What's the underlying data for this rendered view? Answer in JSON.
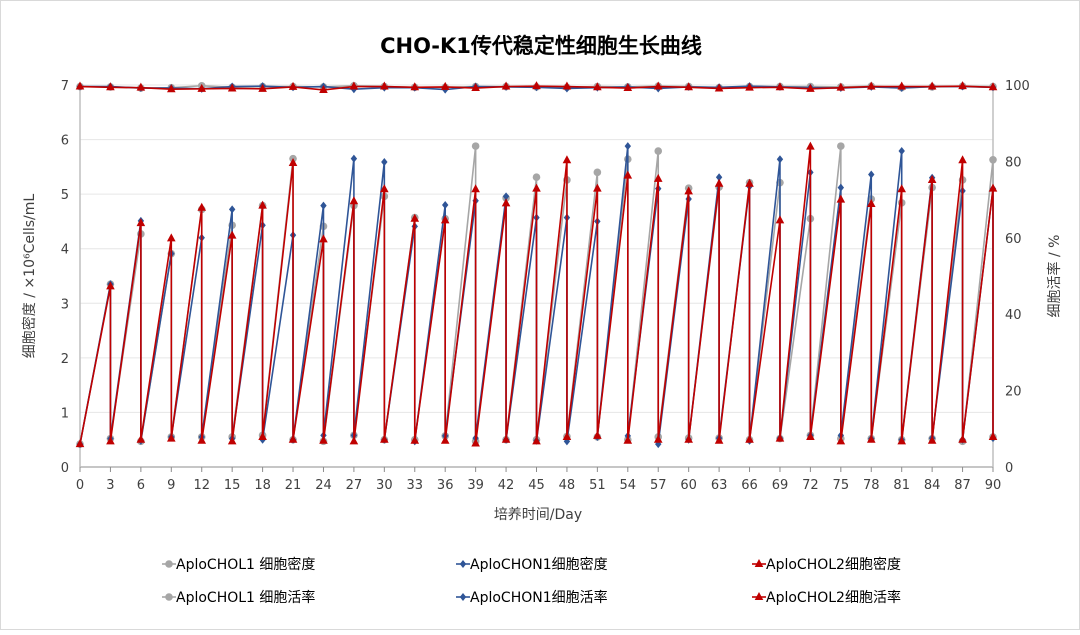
{
  "chart_data": {
    "type": "line",
    "title": "CHO-K1传代稳定性细胞生长曲线",
    "xlabel": "培养时间/Day",
    "ylabel_left": "细胞密度 / ×10⁶Cells/mL",
    "ylabel_right": "细胞活率 / %",
    "xlim": [
      0,
      90
    ],
    "xticks": [
      0,
      3,
      6,
      9,
      12,
      15,
      18,
      21,
      24,
      27,
      30,
      33,
      36,
      39,
      42,
      45,
      48,
      51,
      54,
      57,
      60,
      63,
      66,
      69,
      72,
      75,
      78,
      81,
      84,
      87,
      90
    ],
    "ylim_left": [
      0,
      7
    ],
    "yticks_left": [
      0,
      1,
      2,
      3,
      4,
      5,
      6,
      7
    ],
    "ylim_right": [
      0,
      100
    ],
    "yticks_right": [
      0,
      20,
      40,
      60,
      80,
      100
    ],
    "grid": true,
    "legend_position": "bottom",
    "colors": {
      "CHOL1": "#a6a6a6",
      "CHON1": "#2f5597",
      "CHOL2": "#c00000"
    },
    "density_note": "Each passage: peak density on day d (days 3..90), then re-seeded density on same day (days 0..90)",
    "density_series": [
      {
        "name": "AploCHOL1 细胞密度",
        "key": "CHOL1",
        "marker": "circle",
        "peaks": [
          3.35,
          4.27,
          3.91,
          4.72,
          4.43,
          4.79,
          5.65,
          4.41,
          4.79,
          4.96,
          4.57,
          4.55,
          5.88,
          4.93,
          5.31,
          5.26,
          5.4,
          5.64,
          5.79,
          5.11,
          5.13,
          5.21,
          5.21,
          4.55,
          5.88,
          4.91,
          4.84,
          5.12,
          5.26,
          5.63
        ],
        "seeds": [
          0.42,
          0.52,
          0.47,
          0.55,
          0.55,
          0.55,
          0.58,
          0.5,
          0.47,
          0.58,
          0.5,
          0.5,
          0.57,
          0.47,
          0.5,
          0.5,
          0.56,
          0.55,
          0.5,
          0.55,
          0.53,
          0.53,
          0.5,
          0.52,
          0.58,
          0.52,
          0.52,
          0.5,
          0.52,
          0.47,
          0.55
        ]
      },
      {
        "name": "AploCHON1细胞密度",
        "key": "CHON1",
        "marker": "diamond",
        "peaks": [
          3.35,
          4.51,
          3.91,
          4.2,
          4.72,
          4.43,
          4.25,
          4.79,
          5.65,
          5.59,
          4.41,
          4.8,
          4.88,
          4.96,
          4.57,
          4.57,
          4.5,
          5.88,
          5.1,
          4.91,
          5.31,
          5.14,
          5.64,
          5.4,
          5.12,
          5.36,
          5.79,
          5.3,
          5.06,
          5.1
        ],
        "seeds": [
          0.42,
          0.52,
          0.48,
          0.55,
          0.55,
          0.52,
          0.5,
          0.5,
          0.58,
          0.58,
          0.5,
          0.47,
          0.57,
          0.53,
          0.5,
          0.48,
          0.47,
          0.55,
          0.57,
          0.42,
          0.5,
          0.53,
          0.48,
          0.53,
          0.58,
          0.58,
          0.52,
          0.5,
          0.53,
          0.5,
          0.53
        ]
      },
      {
        "name": "AploCHOL2细胞密度",
        "key": "CHOL2",
        "marker": "triangle",
        "peaks": [
          3.31,
          4.47,
          4.19,
          4.75,
          4.24,
          4.79,
          5.57,
          4.17,
          4.87,
          5.09,
          4.55,
          4.52,
          5.09,
          4.83,
          5.1,
          5.62,
          5.1,
          5.34,
          5.28,
          5.05,
          5.19,
          5.19,
          4.52,
          5.87,
          4.9,
          4.82,
          5.09,
          5.26,
          5.62,
          5.1
        ],
        "seeds": [
          0.42,
          0.47,
          0.5,
          0.52,
          0.48,
          0.47,
          0.55,
          0.5,
          0.48,
          0.47,
          0.5,
          0.48,
          0.48,
          0.43,
          0.5,
          0.47,
          0.55,
          0.57,
          0.48,
          0.5,
          0.5,
          0.48,
          0.5,
          0.52,
          0.55,
          0.47,
          0.5,
          0.47,
          0.48,
          0.5,
          0.55
        ]
      }
    ],
    "viability_series": [
      {
        "name": "AploCHOL1 细胞活率",
        "key": "CHOL1",
        "marker": "circle",
        "values": [
          99.6,
          99.5,
          99.2,
          99.3,
          99.8,
          99.4,
          99.6,
          99.6,
          99.5,
          99.8,
          99.6,
          99.4,
          99.4,
          99.6,
          99.6,
          99.5,
          99.4,
          99.6,
          99.5,
          99.7,
          99.6,
          99.3,
          99.6,
          99.6,
          99.6,
          99.5,
          99.7,
          99.3,
          99.5,
          99.7,
          99.6
        ]
      },
      {
        "name": "AploCHON1细胞活率",
        "key": "CHON1",
        "marker": "diamond",
        "values": [
          99.6,
          99.6,
          99.2,
          99.2,
          99.0,
          99.6,
          99.7,
          99.4,
          99.6,
          98.9,
          99.3,
          99.3,
          98.8,
          99.6,
          99.5,
          99.4,
          99.1,
          99.3,
          99.5,
          99.1,
          99.5,
          99.4,
          99.7,
          99.5,
          99.3,
          99.2,
          99.5,
          99.2,
          99.6,
          99.6,
          99.4
        ]
      },
      {
        "name": "AploCHOL2细胞活率",
        "key": "CHOL2",
        "marker": "triangle",
        "values": [
          99.6,
          99.4,
          99.3,
          98.9,
          99.0,
          99.1,
          99.0,
          99.5,
          98.7,
          99.6,
          99.6,
          99.4,
          99.5,
          99.2,
          99.6,
          99.7,
          99.6,
          99.4,
          99.2,
          99.6,
          99.4,
          99.1,
          99.3,
          99.4,
          99.0,
          99.3,
          99.6,
          99.6,
          99.6,
          99.7,
          99.4
        ]
      }
    ]
  }
}
